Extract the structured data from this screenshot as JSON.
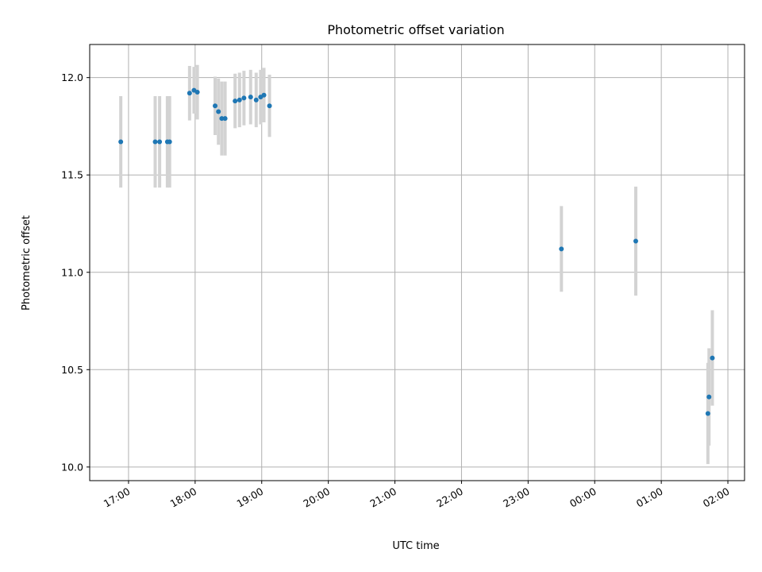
{
  "chart_data": {
    "type": "scatter",
    "title": "Photometric offset variation",
    "xlabel": "UTC time",
    "ylabel": "Photometric offset",
    "xlim": [
      "16:25",
      "02:15"
    ],
    "ylim": [
      9.93,
      12.17
    ],
    "grid": true,
    "x_ticks": [
      "17:00",
      "18:00",
      "19:00",
      "20:00",
      "21:00",
      "22:00",
      "23:00",
      "00:00",
      "01:00",
      "02:00"
    ],
    "y_ticks": [
      "10.0",
      "10.5",
      "11.0",
      "11.5",
      "12.0"
    ],
    "colors": {
      "marker": "#1f77b4",
      "errorbar": "#d3d3d3",
      "grid": "#b0b0b0"
    },
    "series": [
      {
        "x": [
          "16:53",
          "17:24",
          "17:28",
          "17:35",
          "17:37",
          "17:55",
          "17:59",
          "18:02",
          "18:18",
          "18:21",
          "18:24",
          "18:27",
          "18:36",
          "18:40",
          "18:44",
          "18:50",
          "18:55",
          "18:59",
          "19:02",
          "19:07",
          "23:30",
          "00:37",
          "01:42",
          "01:43",
          "01:46"
        ],
        "y": [
          11.67,
          11.67,
          11.67,
          11.67,
          11.67,
          11.92,
          11.935,
          11.925,
          11.855,
          11.825,
          11.79,
          11.79,
          11.88,
          11.885,
          11.895,
          11.9,
          11.885,
          11.9,
          11.91,
          11.855,
          11.12,
          11.16,
          10.275,
          10.36,
          10.56
        ],
        "yerr": [
          0.235,
          0.235,
          0.235,
          0.235,
          0.235,
          0.14,
          0.12,
          0.14,
          0.15,
          0.17,
          0.19,
          0.19,
          0.14,
          0.14,
          0.14,
          0.14,
          0.14,
          0.14,
          0.14,
          0.16,
          0.22,
          0.28,
          0.26,
          0.25,
          0.245
        ]
      }
    ]
  }
}
